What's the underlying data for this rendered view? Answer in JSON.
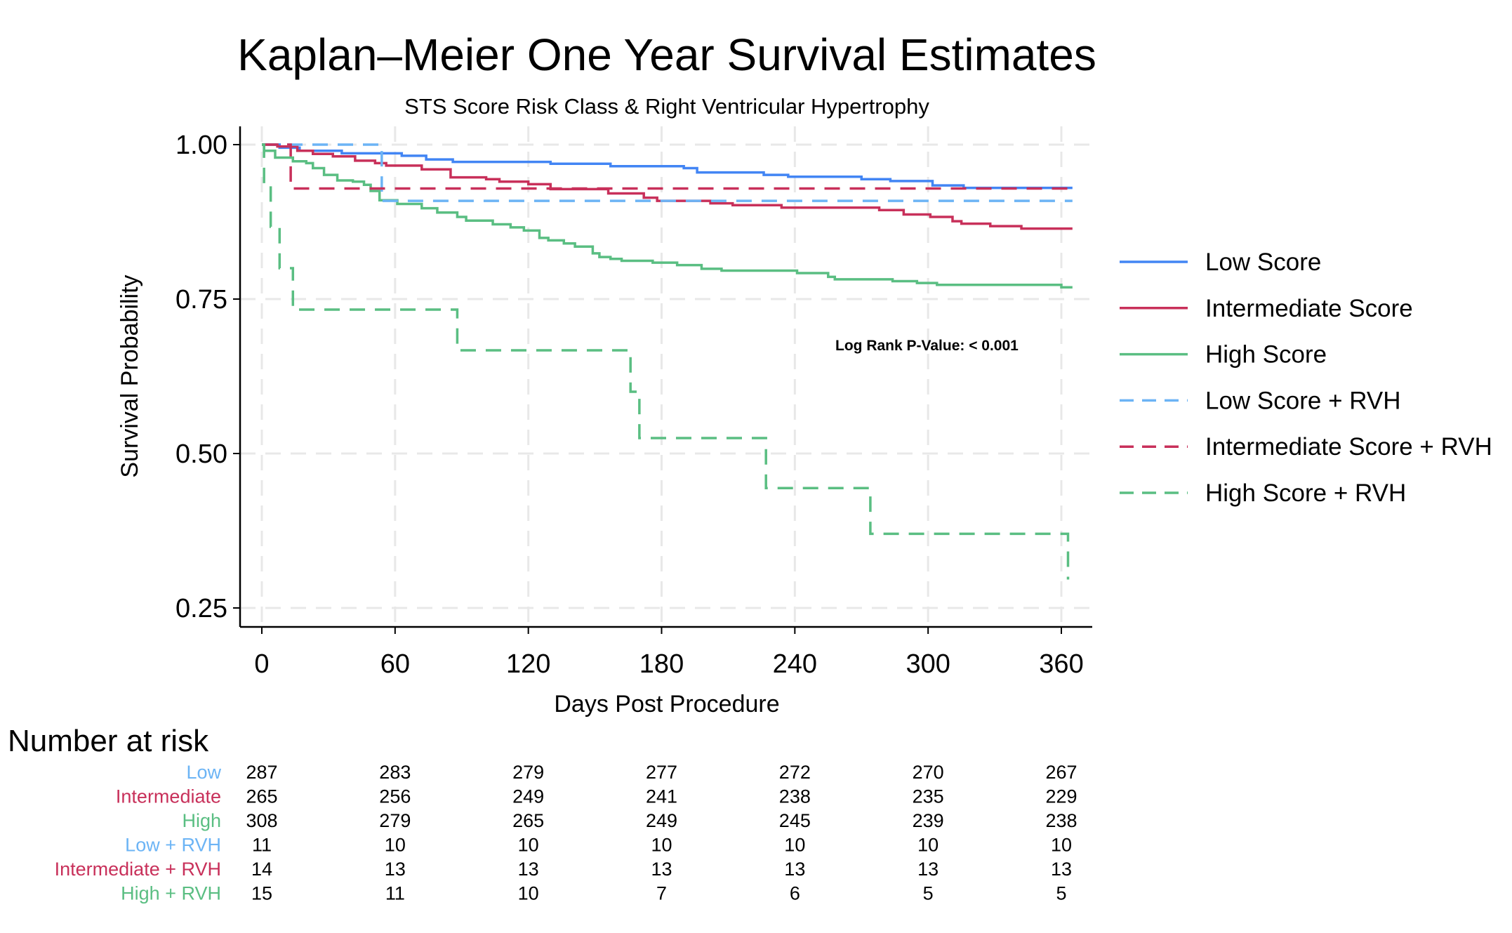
{
  "chart_data": {
    "type": "line",
    "subtype": "kaplan-meier step",
    "title": "Kaplan–Meier One Year Survival Estimates",
    "subtitle": "STS Score Risk Class & Right Ventricular Hypertrophy",
    "xlabel": "Days Post Procedure",
    "ylabel": "Survival Probability",
    "xlim": [
      0,
      360
    ],
    "ylim": [
      0.25,
      1.0
    ],
    "xticks": [
      "0",
      "60",
      "120",
      "180",
      "240",
      "300",
      "360"
    ],
    "yticks": [
      "0.25",
      "0.50",
      "0.75",
      "1.00"
    ],
    "grid": true,
    "legend_position": "right",
    "annotation": "Log Rank P-Value: < 0.001",
    "series": [
      {
        "name": "Low Score",
        "color": "#4285f4",
        "dash": "solid",
        "points": [
          [
            0,
            1.0
          ],
          [
            8,
            0.995
          ],
          [
            17,
            0.99
          ],
          [
            36,
            0.986
          ],
          [
            63,
            0.982
          ],
          [
            74,
            0.976
          ],
          [
            86,
            0.972
          ],
          [
            130,
            0.969
          ],
          [
            157,
            0.965
          ],
          [
            190,
            0.962
          ],
          [
            196,
            0.955
          ],
          [
            226,
            0.951
          ],
          [
            237,
            0.948
          ],
          [
            270,
            0.944
          ],
          [
            283,
            0.941
          ],
          [
            302,
            0.934
          ],
          [
            316,
            0.93
          ],
          [
            365,
            0.93
          ]
        ]
      },
      {
        "name": "Intermediate Score",
        "color": "#c8305a",
        "dash": "solid",
        "points": [
          [
            0,
            1.0
          ],
          [
            7,
            0.997
          ],
          [
            16,
            0.99
          ],
          [
            23,
            0.985
          ],
          [
            32,
            0.981
          ],
          [
            42,
            0.974
          ],
          [
            51,
            0.97
          ],
          [
            56,
            0.966
          ],
          [
            72,
            0.96
          ],
          [
            85,
            0.947
          ],
          [
            101,
            0.944
          ],
          [
            107,
            0.94
          ],
          [
            120,
            0.936
          ],
          [
            130,
            0.928
          ],
          [
            156,
            0.921
          ],
          [
            172,
            0.914
          ],
          [
            178,
            0.909
          ],
          [
            202,
            0.905
          ],
          [
            212,
            0.902
          ],
          [
            234,
            0.898
          ],
          [
            278,
            0.894
          ],
          [
            289,
            0.887
          ],
          [
            301,
            0.883
          ],
          [
            311,
            0.876
          ],
          [
            315,
            0.872
          ],
          [
            328,
            0.868
          ],
          [
            342,
            0.864
          ],
          [
            365,
            0.864
          ]
        ]
      },
      {
        "name": "High Score",
        "color": "#5abe82",
        "dash": "solid",
        "points": [
          [
            0,
            1.0
          ],
          [
            1,
            0.99
          ],
          [
            6,
            0.979
          ],
          [
            14,
            0.973
          ],
          [
            20,
            0.97
          ],
          [
            23,
            0.962
          ],
          [
            28,
            0.951
          ],
          [
            34,
            0.942
          ],
          [
            41,
            0.94
          ],
          [
            46,
            0.935
          ],
          [
            49,
            0.925
          ],
          [
            53,
            0.91
          ],
          [
            61,
            0.904
          ],
          [
            72,
            0.897
          ],
          [
            79,
            0.89
          ],
          [
            88,
            0.883
          ],
          [
            92,
            0.877
          ],
          [
            104,
            0.871
          ],
          [
            112,
            0.866
          ],
          [
            118,
            0.861
          ],
          [
            125,
            0.849
          ],
          [
            129,
            0.845
          ],
          [
            136,
            0.84
          ],
          [
            141,
            0.835
          ],
          [
            149,
            0.824
          ],
          [
            152,
            0.818
          ],
          [
            157,
            0.815
          ],
          [
            162,
            0.812
          ],
          [
            176,
            0.809
          ],
          [
            187,
            0.805
          ],
          [
            198,
            0.799
          ],
          [
            207,
            0.796
          ],
          [
            241,
            0.792
          ],
          [
            255,
            0.786
          ],
          [
            258,
            0.782
          ],
          [
            284,
            0.779
          ],
          [
            295,
            0.776
          ],
          [
            304,
            0.773
          ],
          [
            360,
            0.769
          ],
          [
            365,
            0.769
          ]
        ]
      },
      {
        "name": "Low Score + RVH",
        "color": "#6cb4f5",
        "dash": "dashed",
        "points": [
          [
            0,
            1.0
          ],
          [
            54,
            0.909
          ],
          [
            365,
            0.909
          ]
        ]
      },
      {
        "name": "Intermediate Score + RVH",
        "color": "#c8305a",
        "dash": "dashed",
        "points": [
          [
            0,
            1.0
          ],
          [
            13,
            0.929
          ],
          [
            365,
            0.929
          ]
        ]
      },
      {
        "name": "High Score + RVH",
        "color": "#5abe82",
        "dash": "dashed",
        "points": [
          [
            0,
            1.0
          ],
          [
            1,
            0.933
          ],
          [
            4,
            0.867
          ],
          [
            8,
            0.8
          ],
          [
            14,
            0.733
          ],
          [
            88,
            0.667
          ],
          [
            166,
            0.6
          ],
          [
            170,
            0.525
          ],
          [
            227,
            0.444
          ],
          [
            274,
            0.37
          ],
          [
            363,
            0.296
          ]
        ]
      }
    ],
    "risk_table": {
      "title": "Number at risk",
      "times": [
        0,
        60,
        120,
        180,
        240,
        300,
        360
      ],
      "rows": [
        {
          "label": "Low",
          "color": "#6cb4f5",
          "values": [
            "287",
            "283",
            "279",
            "277",
            "272",
            "270",
            "267"
          ]
        },
        {
          "label": "Intermediate",
          "color": "#c8305a",
          "values": [
            "265",
            "256",
            "249",
            "241",
            "238",
            "235",
            "229"
          ]
        },
        {
          "label": "High",
          "color": "#5abe82",
          "values": [
            "308",
            "279",
            "265",
            "249",
            "245",
            "239",
            "238"
          ]
        },
        {
          "label": "Low + RVH",
          "color": "#6cb4f5",
          "values": [
            "11",
            "10",
            "10",
            "10",
            "10",
            "10",
            "10"
          ]
        },
        {
          "label": "Intermediate + RVH",
          "color": "#c8305a",
          "values": [
            "14",
            "13",
            "13",
            "13",
            "13",
            "13",
            "13"
          ]
        },
        {
          "label": "High + RVH",
          "color": "#5abe82",
          "values": [
            "15",
            "11",
            "10",
            "7",
            "6",
            "5",
            "5"
          ]
        }
      ]
    }
  }
}
